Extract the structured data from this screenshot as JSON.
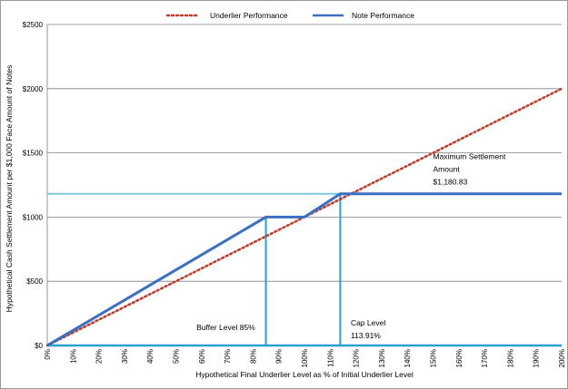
{
  "chart_data": {
    "type": "line",
    "xlabel": "Hypothetical Final Underlier Level as % of Initial Underlier Level",
    "ylabel": "Hypothetical Cash Settlement Amount per $1,000 Face Amount of Notes",
    "xlim": [
      0,
      200
    ],
    "ylim": [
      0,
      2500
    ],
    "x_ticks": [
      0,
      10,
      20,
      30,
      40,
      50,
      60,
      70,
      80,
      90,
      100,
      110,
      120,
      130,
      140,
      150,
      160,
      170,
      180,
      190,
      200
    ],
    "x_tick_labels": [
      "0%",
      "10%",
      "20%",
      "30%",
      "40%",
      "50%",
      "60%",
      "70%",
      "80%",
      "90%",
      "100%",
      "110%",
      "120%",
      "130%",
      "140%",
      "150%",
      "160%",
      "170%",
      "180%",
      "190%",
      "200%"
    ],
    "y_ticks": [
      0,
      500,
      1000,
      1500,
      2000,
      2500
    ],
    "y_tick_labels": [
      "$0",
      "$500",
      "$1000",
      "$1500",
      "$2000",
      "$2500"
    ],
    "grid": "horizontal",
    "legend_position": "top-center",
    "series": [
      {
        "name": "Underlier Performance",
        "style": "dotted",
        "color": "#c0392b",
        "x": [
          0,
          200
        ],
        "y": [
          0,
          2000
        ]
      },
      {
        "name": "Note Performance",
        "style": "solid",
        "color": "#3a6fc4",
        "x": [
          0,
          85,
          100,
          113.91,
          200
        ],
        "y": [
          0,
          1000,
          1000,
          1180.83,
          1180.83
        ]
      }
    ],
    "reference_lines": [
      {
        "kind": "horizontal",
        "y": 1180.83,
        "color": "#7fc8d8"
      },
      {
        "kind": "vertical",
        "x": 85,
        "color": "#2a9fd0"
      },
      {
        "kind": "vertical",
        "x": 113.91,
        "color": "#2a9fd0"
      },
      {
        "kind": "horizontal",
        "y": 0,
        "color": "#2a9fd0"
      }
    ],
    "annotations": [
      {
        "lines": [
          "Maximum Settlement",
          "Amount",
          "$1,180.83"
        ],
        "x": 150,
        "y": 1450
      },
      {
        "lines": [
          "Buffer Level 85%"
        ],
        "x": 58,
        "y": 120
      },
      {
        "lines": [
          "Cap Level",
          "113.91%"
        ],
        "x": 118,
        "y": 155
      }
    ]
  },
  "colors": {
    "underlier": "#c0392b",
    "note": "#3a6fc4",
    "max_line": "#7fc8d8",
    "ref_lines": "#2a9fd0",
    "grid": "#808080"
  }
}
